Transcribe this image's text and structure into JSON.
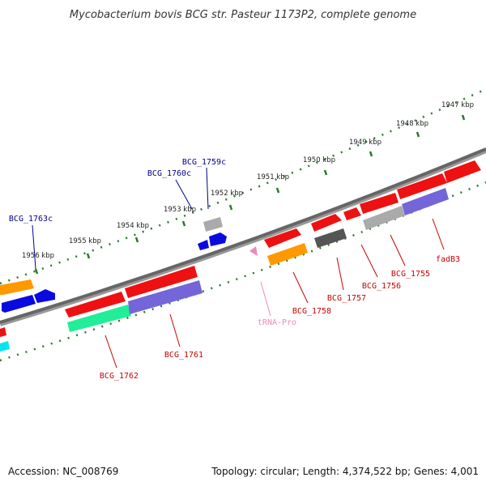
{
  "title": "Mycobacterium bovis BCG str. Pasteur 1173P2, complete genome",
  "footer": {
    "accession": "Accession: NC_008769",
    "summary": "Topology: circular; Length: 4,374,522 bp; Genes: 4,001"
  },
  "scale_ticks": [
    "1947 kbp",
    "1948 kbp",
    "1949 kbp",
    "1950 kbp",
    "1951 kbp",
    "1952 kbp",
    "1953 kbp",
    "1954 kbp",
    "1955 kbp",
    "1956 kbp"
  ],
  "gene_labels": {
    "bcg1763c": "BCG_1763c",
    "bcg1760c": "BCG_1760c",
    "bcg1759c": "BCG_1759c",
    "fadb3": "fadB3",
    "bcg1755": "BCG_1755",
    "bcg1756": "BCG_1756",
    "bcg1757": "BCG_1757",
    "bcg1758": "BCG_1758",
    "trna_pro": "tRNA-Pro",
    "bcg1761": "BCG_1761",
    "bcg1762": "BCG_1762"
  },
  "colors": {
    "reverse_label": "#00008b",
    "forward_label": "#cc0000",
    "trna_label": "#ee88bb",
    "backbone": "#777777",
    "scale_tick": "#2a7a2a",
    "gene_red": "#ee1111",
    "gene_blue": "#0a0ae0",
    "gene_grey_light": "#aaaaaa",
    "gene_grey_dark": "#555555",
    "gene_orange": "#ff9900",
    "gene_purple": "#7466d8",
    "gene_green": "#22ee99",
    "gene_cyan": "#00e6f0",
    "trna": "#ee88bb"
  }
}
